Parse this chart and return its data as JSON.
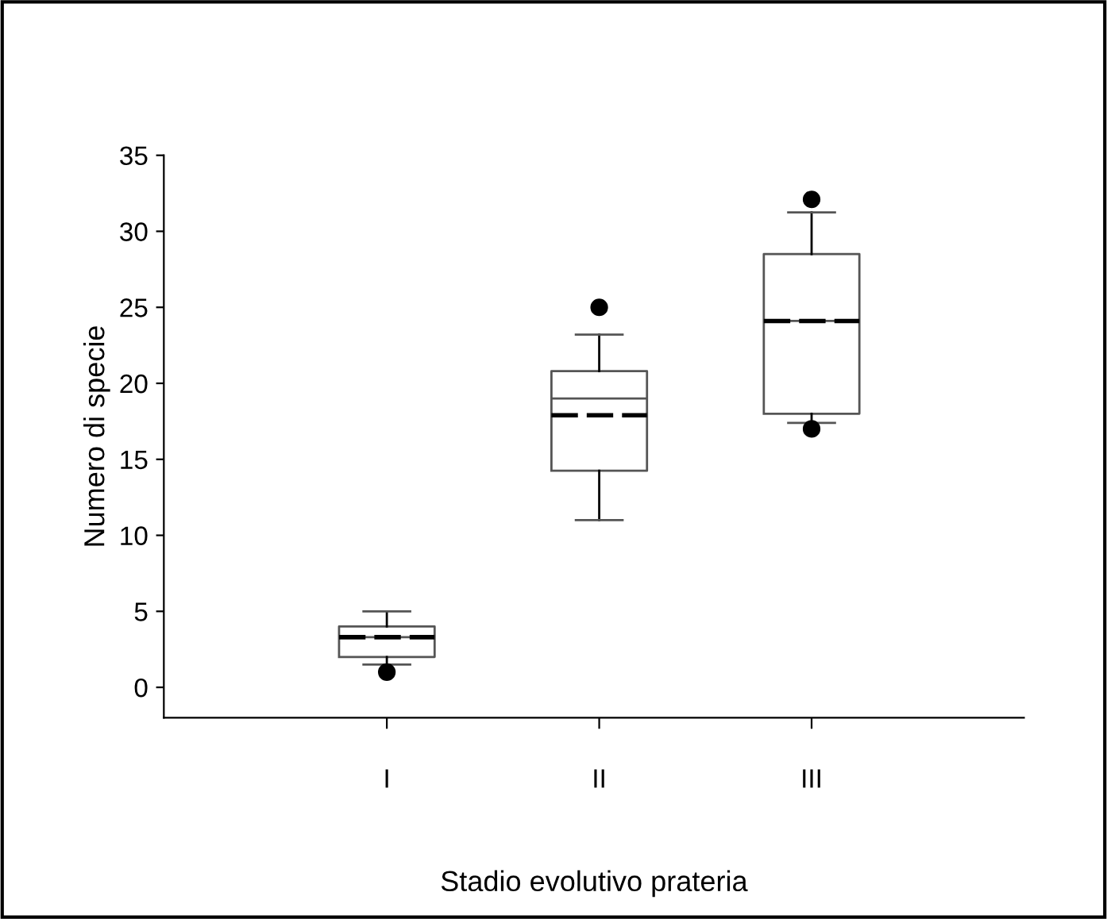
{
  "chart_data": {
    "type": "box",
    "xlabel": "Stadio evolutivo prateria",
    "ylabel": "Numero di specie",
    "categories": [
      "I",
      "II",
      "III"
    ],
    "boxes": [
      {
        "low": 1.5,
        "q1": 2.0,
        "median": 3.3,
        "q3": 4.0,
        "high": 5.0,
        "mean": 3.3,
        "outliers": [
          1.0
        ]
      },
      {
        "low": 11.0,
        "q1": 14.25,
        "median": 19.0,
        "q3": 20.8,
        "high": 23.2,
        "mean": 17.9,
        "outliers": [
          25.0
        ]
      },
      {
        "low": 17.4,
        "q1": 18.0,
        "median": 24.1,
        "q3": 28.5,
        "high": 31.25,
        "mean": 24.1,
        "outliers": [
          32.1,
          17.0
        ]
      }
    ],
    "ylim": [
      -2,
      35
    ],
    "yticks": [
      0,
      5,
      10,
      15,
      20,
      25,
      30,
      35
    ],
    "grid": false
  }
}
